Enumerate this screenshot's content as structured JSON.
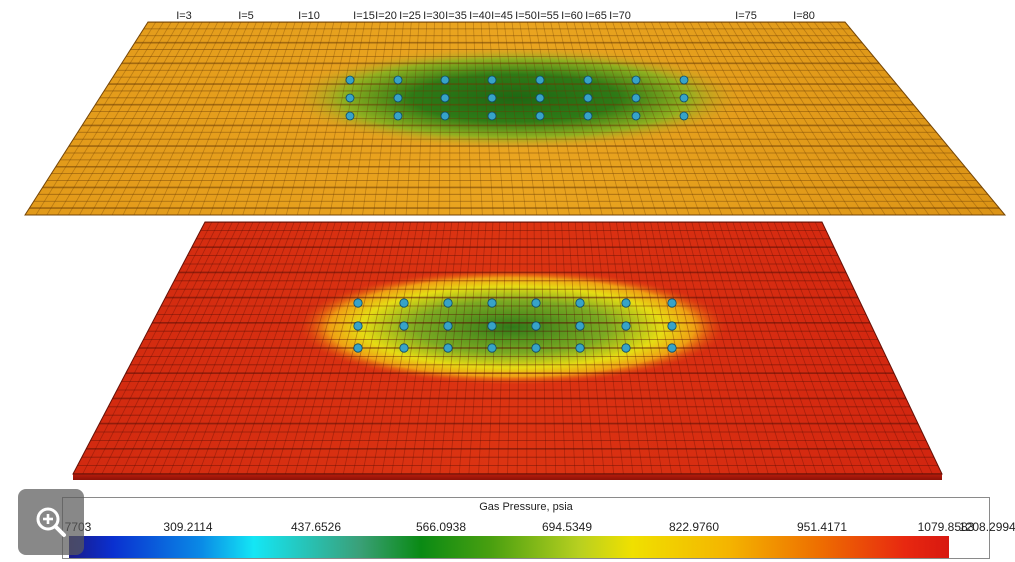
{
  "viewer": {
    "i_labels": [
      "I=3",
      "I=5",
      "I=10",
      "I=15",
      "I=20",
      "I=25",
      "I=30",
      "I=35",
      "I=40",
      "I=45",
      "I=50",
      "I=55",
      "I=60",
      "I=65",
      "I=70",
      "I=75",
      "I=80"
    ]
  },
  "legend": {
    "title": "Gas Pressure, psia",
    "ticks": [
      "7703",
      "309.2114",
      "437.6526",
      "566.0938",
      "694.5349",
      "822.9760",
      "951.4171",
      "1079.8583",
      "1208.2994"
    ]
  },
  "colors": {
    "top_layer_base": "#e09a18",
    "bottom_layer_base": "#d8280e",
    "low_pressure_zone": "#1f6a1a",
    "well_marker": "#37a3c8"
  },
  "icons": {
    "zoom": "zoom-in-icon"
  }
}
